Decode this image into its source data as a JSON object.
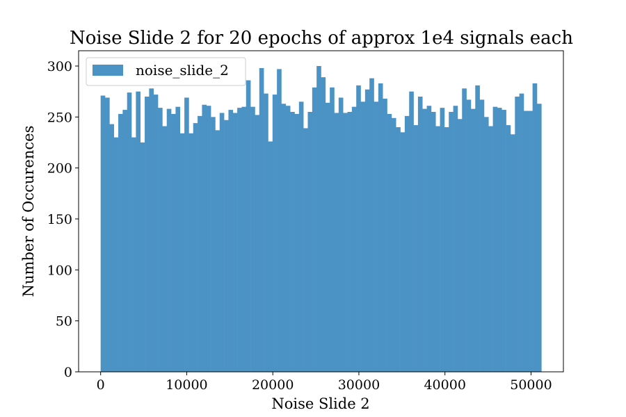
{
  "chart_data": {
    "type": "bar",
    "title": "Noise Slide 2 for 20 epochs of approx 1e4 signals each",
    "xlabel": "Noise Slide 2",
    "ylabel": "Number of Occurences",
    "xlim": [
      -2560,
      53760
    ],
    "ylim": [
      0,
      315
    ],
    "x_ticks": [
      0,
      10000,
      20000,
      30000,
      40000,
      50000
    ],
    "x_tick_labels": [
      "0",
      "10000",
      "20000",
      "30000",
      "40000",
      "50000"
    ],
    "y_ticks": [
      0,
      50,
      100,
      150,
      200,
      250,
      300
    ],
    "y_tick_labels": [
      "0",
      "50",
      "100",
      "150",
      "200",
      "250",
      "300"
    ],
    "legend": {
      "position": "upper-left",
      "entries": [
        "noise_slide_2"
      ]
    },
    "grid": false,
    "bin_range": [
      0,
      51200
    ],
    "series": [
      {
        "name": "noise_slide_2",
        "color": "#4c93c5",
        "values": [
          271,
          269,
          243,
          230,
          253,
          257,
          274,
          230,
          275,
          225,
          270,
          278,
          272,
          259,
          241,
          258,
          253,
          260,
          234,
          269,
          234,
          244,
          251,
          262,
          261,
          250,
          237,
          254,
          247,
          257,
          254,
          259,
          260,
          286,
          260,
          252,
          298,
          273,
          226,
          272,
          297,
          263,
          261,
          255,
          253,
          265,
          239,
          255,
          279,
          300,
          289,
          264,
          279,
          254,
          269,
          254,
          255,
          260,
          281,
          265,
          277,
          288,
          265,
          283,
          268,
          253,
          249,
          240,
          235,
          251,
          275,
          242,
          270,
          258,
          261,
          255,
          241,
          259,
          240,
          255,
          261,
          248,
          278,
          267,
          258,
          281,
          267,
          250,
          241,
          260,
          259,
          257,
          242,
          233,
          270,
          273,
          256,
          256,
          283,
          263
        ]
      }
    ]
  }
}
